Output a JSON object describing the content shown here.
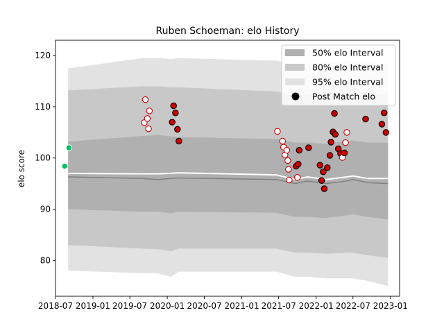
{
  "chart_data": {
    "type": "area",
    "title": "Ruben Schoeman: elo History",
    "xlabel": "",
    "ylabel": "elo score",
    "xlim": [
      "2018-07-01",
      "2023-02-15"
    ],
    "ylim": [
      73,
      123
    ],
    "x_ticks": [
      "2018-07",
      "2019-01",
      "2019-07",
      "2020-01",
      "2020-07",
      "2021-01",
      "2021-07",
      "2022-01",
      "2022-07",
      "2023-01"
    ],
    "y_ticks": [
      80,
      90,
      100,
      110,
      120
    ],
    "grid": false,
    "legend_position": "top-right",
    "legend": [
      {
        "label": "50% elo Interval",
        "kind": "band50"
      },
      {
        "label": "80% elo Interval",
        "kind": "band80"
      },
      {
        "label": "95% elo Interval",
        "kind": "band95"
      },
      {
        "label": "Post Match elo",
        "kind": "marker"
      }
    ],
    "colors": {
      "band50": "#b0b0b0",
      "band80": "#c8c8c8",
      "band95": "#e2e2e2",
      "median_line": "#808080",
      "mean_line": "#ffffff",
      "win": "#000000",
      "win_edge": "#000000",
      "loss_fill": "#ffffff",
      "marker_red": "#cc0000",
      "initial": "#00c060"
    },
    "bands": [
      {
        "x": "2018-09-01",
        "lo95": 78.0,
        "lo80": 83.0,
        "lo50": 90.0,
        "median": 96.3,
        "mean": 97.0,
        "hi50": 103.2,
        "hi80": 113.2,
        "hi95": 117.5
      },
      {
        "x": "2019-09-01",
        "lo95": 77.5,
        "lo80": 82.3,
        "lo50": 89.5,
        "median": 96.0,
        "mean": 96.9,
        "hi50": 104.3,
        "hi80": 114.0,
        "hi95": 119.5
      },
      {
        "x": "2019-11-15",
        "lo95": 77.5,
        "lo80": 82.2,
        "lo50": 89.5,
        "median": 95.8,
        "mean": 96.9,
        "hi50": 104.5,
        "hi80": 114.0,
        "hi95": 119.5
      },
      {
        "x": "2020-01-20",
        "lo95": 76.8,
        "lo80": 81.8,
        "lo50": 89.2,
        "median": 96.0,
        "mean": 97.0,
        "hi50": 104.2,
        "hi80": 113.8,
        "hi95": 119.3
      },
      {
        "x": "2020-02-25",
        "lo95": 77.8,
        "lo80": 82.3,
        "lo50": 89.5,
        "median": 96.1,
        "mean": 97.1,
        "hi50": 104.1,
        "hi80": 113.8,
        "hi95": 119.5
      },
      {
        "x": "2021-06-20",
        "lo95": 77.8,
        "lo80": 82.3,
        "lo50": 89.3,
        "median": 95.8,
        "mean": 96.7,
        "hi50": 103.7,
        "hi80": 113.0,
        "hi95": 119.0
      },
      {
        "x": "2021-09-20",
        "lo95": 76.8,
        "lo80": 81.5,
        "lo50": 88.5,
        "median": 95.0,
        "mean": 95.8,
        "hi50": 103.0,
        "hi80": 112.3,
        "hi95": 118.3
      },
      {
        "x": "2021-11-20",
        "lo95": 76.8,
        "lo80": 81.5,
        "lo50": 88.5,
        "median": 95.5,
        "mean": 96.3,
        "hi50": 103.0,
        "hi80": 112.3,
        "hi95": 118.5
      },
      {
        "x": "2022-02-20",
        "lo95": 76.5,
        "lo80": 81.3,
        "lo50": 88.3,
        "median": 95.0,
        "mean": 95.8,
        "hi50": 102.8,
        "hi80": 112.5,
        "hi95": 118.5
      },
      {
        "x": "2022-06-01",
        "lo95": 76.5,
        "lo80": 81.5,
        "lo50": 88.8,
        "median": 95.5,
        "mean": 96.3,
        "hi50": 103.3,
        "hi80": 113.0,
        "hi95": 119.0
      },
      {
        "x": "2022-07-01",
        "lo95": 76.5,
        "lo80": 81.5,
        "lo50": 89.0,
        "median": 95.8,
        "mean": 96.5,
        "hi50": 103.4,
        "hi80": 113.2,
        "hi95": 119.0
      },
      {
        "x": "2022-09-10",
        "lo95": 76.0,
        "lo80": 81.0,
        "lo50": 88.5,
        "median": 95.2,
        "mean": 96.0,
        "hi50": 103.0,
        "hi80": 112.6,
        "hi95": 118.6
      },
      {
        "x": "2022-12-20",
        "lo95": 75.0,
        "lo80": 80.5,
        "lo50": 88.0,
        "median": 95.0,
        "mean": 96.0,
        "hi50": 103.0,
        "hi80": 112.3,
        "hi95": 118.3
      }
    ],
    "initial_points": [
      {
        "x": "2018-08-15",
        "y": 98.4
      },
      {
        "x": "2018-09-05",
        "y": 102.0
      }
    ],
    "matches": [
      {
        "x": "2019-09-10",
        "y": 106.9,
        "win": false
      },
      {
        "x": "2019-09-15",
        "y": 111.4,
        "win": false
      },
      {
        "x": "2019-09-25",
        "y": 107.7,
        "win": false
      },
      {
        "x": "2019-10-01",
        "y": 105.7,
        "win": false
      },
      {
        "x": "2019-10-05",
        "y": 109.2,
        "win": false
      },
      {
        "x": "2020-01-25",
        "y": 107.0,
        "win": true
      },
      {
        "x": "2020-02-01",
        "y": 110.2,
        "win": true
      },
      {
        "x": "2020-02-10",
        "y": 108.8,
        "win": true
      },
      {
        "x": "2020-02-20",
        "y": 105.6,
        "win": true
      },
      {
        "x": "2020-02-27",
        "y": 103.3,
        "win": true
      },
      {
        "x": "2021-06-25",
        "y": 105.2,
        "win": false
      },
      {
        "x": "2021-07-20",
        "y": 103.3,
        "win": false
      },
      {
        "x": "2021-07-25",
        "y": 102.1,
        "win": false
      },
      {
        "x": "2021-08-01",
        "y": 100.6,
        "win": false
      },
      {
        "x": "2021-08-10",
        "y": 101.5,
        "win": false
      },
      {
        "x": "2021-08-15",
        "y": 99.5,
        "win": false
      },
      {
        "x": "2021-08-18",
        "y": 97.8,
        "win": false
      },
      {
        "x": "2021-08-22",
        "y": 95.7,
        "win": false
      },
      {
        "x": "2021-09-25",
        "y": 98.4,
        "win": true
      },
      {
        "x": "2021-10-01",
        "y": 96.2,
        "win": false
      },
      {
        "x": "2021-10-05",
        "y": 98.8,
        "win": true
      },
      {
        "x": "2021-10-10",
        "y": 101.5,
        "win": true
      },
      {
        "x": "2021-11-25",
        "y": 102.0,
        "win": true
      },
      {
        "x": "2022-01-20",
        "y": 98.6,
        "win": true
      },
      {
        "x": "2022-01-28",
        "y": 95.6,
        "win": true
      },
      {
        "x": "2022-02-05",
        "y": 97.3,
        "win": true
      },
      {
        "x": "2022-02-10",
        "y": 94.0,
        "win": true
      },
      {
        "x": "2022-02-25",
        "y": 98.1,
        "win": true
      },
      {
        "x": "2022-03-10",
        "y": 100.5,
        "win": true
      },
      {
        "x": "2022-03-15",
        "y": 103.1,
        "win": true
      },
      {
        "x": "2022-03-25",
        "y": 105.1,
        "win": true
      },
      {
        "x": "2022-04-01",
        "y": 108.7,
        "win": true
      },
      {
        "x": "2022-04-05",
        "y": 104.6,
        "win": true
      },
      {
        "x": "2022-04-20",
        "y": 101.8,
        "win": true
      },
      {
        "x": "2022-05-01",
        "y": 100.9,
        "win": true
      },
      {
        "x": "2022-05-10",
        "y": 100.1,
        "win": false
      },
      {
        "x": "2022-05-20",
        "y": 101.0,
        "win": true
      },
      {
        "x": "2022-05-25",
        "y": 103.0,
        "win": false
      },
      {
        "x": "2022-06-01",
        "y": 105.0,
        "win": false
      },
      {
        "x": "2022-09-01",
        "y": 107.6,
        "win": true
      },
      {
        "x": "2022-11-20",
        "y": 106.6,
        "win": true
      },
      {
        "x": "2022-12-01",
        "y": 108.8,
        "win": true
      },
      {
        "x": "2022-12-10",
        "y": 105.0,
        "win": true
      }
    ]
  }
}
